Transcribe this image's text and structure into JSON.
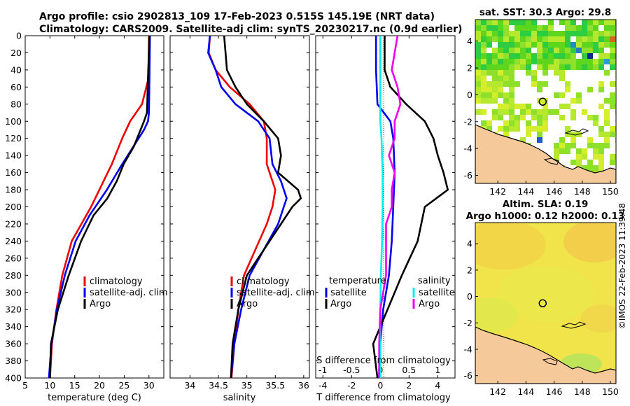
{
  "title": {
    "line1": "Argo profile: csio 2902813_109 17-Feb-2023 0.515S 145.19E (NRT data)",
    "line2": "Climatology: CARS2009. Satellite-adj clim: synTS_20230217.nc (0.9d earlier)"
  },
  "colors": {
    "climatology": "#ee0000",
    "satellite": "#0000ee",
    "argo": "#000000",
    "t_diff": "#00eeee",
    "s_diff": "#ee00ee",
    "land": "#f5c99a"
  },
  "chart_data": [
    {
      "type": "line",
      "name": "temperature",
      "xlabel": "temperature (deg C)",
      "ylabel": "",
      "xlim": [
        5,
        33
      ],
      "ylim": [
        400,
        0
      ],
      "xticks": [
        5,
        10,
        15,
        20,
        25,
        30
      ],
      "yticks": [
        0,
        20,
        40,
        60,
        80,
        100,
        120,
        140,
        160,
        180,
        200,
        220,
        240,
        260,
        280,
        300,
        320,
        340,
        360,
        380,
        400
      ],
      "legend": [
        "climatology",
        "satellite-adj. clim",
        "Argo"
      ],
      "series": [
        {
          "name": "climatology",
          "depth": [
            0,
            50,
            80,
            100,
            120,
            150,
            200,
            240,
            280,
            320,
            360,
            400
          ],
          "values": [
            30.0,
            29.9,
            28.6,
            26.2,
            24.6,
            22.5,
            18.3,
            14.4,
            12.5,
            11.3,
            10.4,
            10.0
          ]
        },
        {
          "name": "satellite-adj. clim",
          "depth": [
            0,
            50,
            90,
            100,
            110,
            130,
            150,
            180,
            210,
            240,
            280,
            320,
            360,
            400
          ],
          "values": [
            30.2,
            30.1,
            30.0,
            29.8,
            29.0,
            26.8,
            24.6,
            21.5,
            18.0,
            15.2,
            13.0,
            11.4,
            10.3,
            9.8
          ]
        },
        {
          "name": "Argo",
          "depth": [
            0,
            50,
            90,
            100,
            110,
            130,
            150,
            170,
            190,
            210,
            240,
            280,
            320,
            360,
            400
          ],
          "values": [
            30.1,
            29.8,
            29.6,
            29.0,
            28.3,
            26.9,
            24.9,
            23.5,
            21.6,
            18.8,
            16.3,
            13.8,
            11.6,
            10.2,
            10.0
          ]
        }
      ]
    },
    {
      "type": "line",
      "name": "salinity",
      "xlabel": "salinity",
      "xlim": [
        33.65,
        36.1
      ],
      "ylim": [
        400,
        0
      ],
      "xticks": [
        34,
        34.5,
        35,
        35.5,
        36
      ],
      "legend": [
        "climatology",
        "satellite-adj. clim",
        "Argo"
      ],
      "series": [
        {
          "name": "climatology",
          "depth": [
            0,
            20,
            40,
            60,
            80,
            100,
            120,
            150,
            180,
            200,
            220,
            250,
            280,
            320,
            360,
            400
          ],
          "values": [
            34.35,
            34.33,
            34.45,
            34.7,
            35.05,
            35.3,
            35.35,
            35.35,
            35.5,
            35.45,
            35.35,
            35.15,
            34.95,
            34.85,
            34.78,
            34.73
          ]
        },
        {
          "name": "satellite-adj. clim",
          "depth": [
            0,
            20,
            40,
            60,
            80,
            100,
            120,
            150,
            170,
            190,
            200,
            220,
            250,
            280,
            320,
            360,
            400
          ],
          "values": [
            34.35,
            34.32,
            34.45,
            34.55,
            34.8,
            35.2,
            35.4,
            35.45,
            35.6,
            35.7,
            35.65,
            35.55,
            35.3,
            35.05,
            34.9,
            34.78,
            34.72
          ]
        },
        {
          "name": "Argo",
          "depth": [
            0,
            40,
            60,
            80,
            100,
            120,
            140,
            160,
            180,
            190,
            200,
            220,
            250,
            280,
            320,
            360,
            400
          ],
          "values": [
            34.6,
            34.65,
            34.8,
            35.0,
            35.3,
            35.55,
            35.6,
            35.55,
            35.9,
            35.95,
            35.8,
            35.6,
            35.3,
            35.0,
            34.85,
            34.75,
            34.72
          ]
        }
      ]
    },
    {
      "type": "line",
      "name": "differences",
      "xlabel": "T difference from climatology",
      "xlabel_top": "S difference from climatology",
      "xlim": [
        -4.5,
        5.2
      ],
      "ylim": [
        400,
        0
      ],
      "xticks": [
        -4,
        -2,
        0,
        2,
        4
      ],
      "xticks_top": [
        -1,
        -0.5,
        0,
        0.5,
        1
      ],
      "xlim_top": [
        -1.125,
        1.3
      ],
      "legend_t_title": "temperature",
      "legend_t": [
        "satellite",
        "Argo"
      ],
      "legend_s_title": "salinity",
      "legend_s": [
        "satellite",
        "Argo"
      ],
      "series": [
        {
          "name": "T satellite",
          "depth": [
            0,
            40,
            80,
            100,
            120,
            160,
            200,
            240,
            280,
            320,
            360,
            400
          ],
          "values": [
            -0.3,
            -0.3,
            -0.2,
            0.7,
            0.9,
            1.0,
            0.9,
            0.8,
            0.6,
            0.2,
            0.0,
            -0.1
          ]
        },
        {
          "name": "T Argo",
          "depth": [
            0,
            40,
            60,
            80,
            100,
            120,
            140,
            160,
            180,
            190,
            200,
            240,
            280,
            320,
            360,
            400
          ],
          "values": [
            0.3,
            0.3,
            0.7,
            1.8,
            3.1,
            3.7,
            4.0,
            4.4,
            4.7,
            3.9,
            3.1,
            2.6,
            1.5,
            0.5,
            -0.5,
            -0.2
          ]
        },
        {
          "name": "S satellite",
          "depth": [
            0,
            40,
            60,
            80,
            100,
            120,
            140,
            160,
            180,
            200,
            240,
            280,
            320,
            360,
            400
          ],
          "values": [
            0.0,
            0.0,
            0.0,
            0.0,
            0.0,
            0.02,
            0.03,
            0.04,
            0.04,
            0.04,
            0.03,
            0.01,
            0.0,
            0.0,
            0.0
          ]
        },
        {
          "name": "S Argo",
          "depth": [
            0,
            40,
            60,
            80,
            100,
            120,
            140,
            160,
            180,
            200,
            220,
            240,
            280,
            320,
            360,
            400
          ],
          "values": [
            0.3,
            0.2,
            0.3,
            0.35,
            0.25,
            0.25,
            0.15,
            0.25,
            0.2,
            0.2,
            0.1,
            0.1,
            0.1,
            0.0,
            -0.02,
            -0.02
          ]
        }
      ]
    },
    {
      "type": "heatmap",
      "name": "sst-map",
      "title": "sat. SST: 30.3 Argo: 29.8",
      "xlim": [
        140.4,
        150.4
      ],
      "ylim": [
        -6.6,
        5.6
      ],
      "xticks": [
        142,
        144,
        146,
        148,
        150
      ],
      "yticks": [
        4,
        2,
        0,
        -2,
        -4,
        -6
      ],
      "marker": {
        "lon": 145.19,
        "lat": -0.515
      }
    },
    {
      "type": "heatmap",
      "name": "sla-map",
      "title_line1": "Altim. SLA: 0.19",
      "title_line2": "Argo h1000: 0.12 h2000: 0.13",
      "xlim": [
        140.4,
        150.4
      ],
      "ylim": [
        -6.6,
        5.6
      ],
      "xticks": [
        142,
        144,
        146,
        148,
        150
      ],
      "yticks": [
        4,
        2,
        0,
        -2,
        -4,
        -6
      ],
      "marker": {
        "lon": 145.19,
        "lat": -0.515
      }
    }
  ],
  "footer": "©IMOS 22-Feb-2023 11:39:48"
}
